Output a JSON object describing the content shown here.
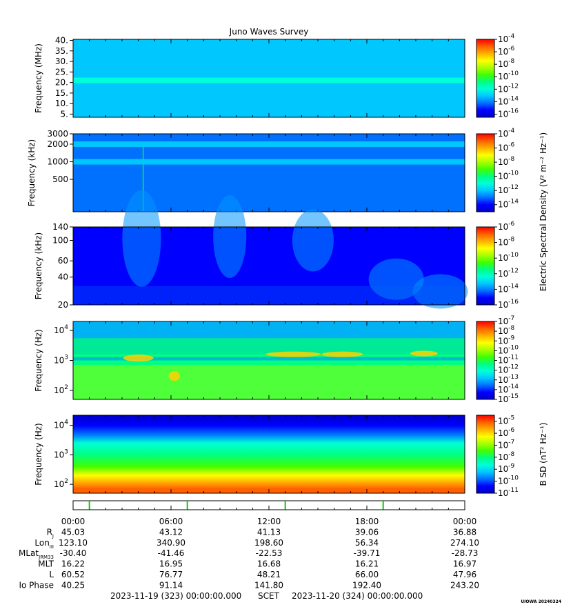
{
  "title": "Juno Waves Survey",
  "credit": "UIOWA 20240324",
  "scet": {
    "start": "2023-11-19 (323) 00:00:00.000",
    "label": "SCET",
    "end": "2023-11-20 (324) 00:00:00.000"
  },
  "shared_colorbar_label": "Electric Spectral Density (V² m⁻² Hz⁻¹)",
  "colors": {
    "spectrum": [
      "#0000c8",
      "#0000ff",
      "#0070ff",
      "#00c8ff",
      "#00ffd8",
      "#00ff80",
      "#40ff00",
      "#a8ff00",
      "#ffff00",
      "#ffb000",
      "#ff6000",
      "#ff0000"
    ]
  },
  "chart_data": [
    {
      "type": "heatmap",
      "name": "panel-1",
      "ylabel": "Frequency (MHz)",
      "yscale": "linear",
      "ylim": [
        3.5,
        40.5
      ],
      "yticks": [
        {
          "v": 40,
          "t": "40."
        },
        {
          "v": 35,
          "t": "35."
        },
        {
          "v": 30,
          "t": "30."
        },
        {
          "v": 25,
          "t": "25."
        },
        {
          "v": 20,
          "t": "20."
        },
        {
          "v": 15,
          "t": "15."
        },
        {
          "v": 10,
          "t": "10."
        },
        {
          "v": 5,
          "t": "5."
        }
      ],
      "colorbar": {
        "range": [
          -16.5,
          -4
        ],
        "ticks": [
          -4,
          -6,
          -8,
          -10,
          -12,
          -14,
          -16
        ]
      },
      "background_level": -12.8,
      "bands": [
        {
          "freq": 21,
          "level": -11.5
        }
      ]
    },
    {
      "type": "heatmap",
      "name": "panel-2",
      "ylabel": "Frequency (kHz)",
      "yscale": "log",
      "ylim": [
        140,
        3000
      ],
      "yticks": [
        {
          "v": 3000,
          "t": "3000"
        },
        {
          "v": 2000,
          "t": "2000"
        },
        {
          "v": 1000,
          "t": "1000"
        },
        {
          "v": 500,
          "t": "500"
        }
      ],
      "colorbar": {
        "range": [
          -15,
          -4
        ],
        "ticks": [
          -4,
          -6,
          -8,
          -10,
          -12,
          -14
        ]
      },
      "background_level": -12.8,
      "bands": [
        {
          "freq": 2000,
          "level": -11.8
        },
        {
          "freq": 1000,
          "level": -12.2
        }
      ]
    },
    {
      "type": "heatmap",
      "name": "panel-3",
      "ylabel": "Frequency (kHz)",
      "yscale": "log",
      "ylim": [
        20,
        140
      ],
      "yticks": [
        {
          "v": 140,
          "t": "140"
        },
        {
          "v": 100,
          "t": "100"
        },
        {
          "v": 60,
          "t": "60"
        },
        {
          "v": 40,
          "t": "40"
        },
        {
          "v": 20,
          "t": "20"
        }
      ],
      "colorbar": {
        "range": [
          -16,
          -6
        ],
        "ticks": [
          -6,
          -8,
          -10,
          -12,
          -14,
          -16
        ]
      },
      "background_level": -14.8
    },
    {
      "type": "heatmap",
      "name": "panel-4",
      "ylabel": "Frequency (Hz)",
      "yscale": "log",
      "ylim": [
        50,
        20000
      ],
      "yticks": [
        {
          "v": 10000,
          "t": "10",
          "sup": "4"
        },
        {
          "v": 1000,
          "t": "10",
          "sup": "3"
        },
        {
          "v": 100,
          "t": "10",
          "sup": "2"
        }
      ],
      "colorbar": {
        "range": [
          -15,
          -7
        ],
        "ticks": [
          -7,
          -8,
          -9,
          -10,
          -11,
          -12,
          -13,
          -14,
          -15
        ]
      },
      "background_level": -11.2
    },
    {
      "type": "heatmap",
      "name": "panel-5",
      "ylabel": "Frequency (Hz)",
      "yscale": "log",
      "ylim": [
        50,
        22000
      ],
      "yticks": [
        {
          "v": 10000,
          "t": "10",
          "sup": "4"
        },
        {
          "v": 1000,
          "t": "10",
          "sup": "3"
        },
        {
          "v": 100,
          "t": "10",
          "sup": "2"
        }
      ],
      "colorbar": {
        "range": [
          -11,
          -4.5
        ],
        "ticks": [
          -5,
          -6,
          -7,
          -8,
          -9,
          -10,
          -11
        ],
        "label": "B SD (nT² Hz⁻¹)"
      },
      "profile": [
        {
          "f": 22000,
          "level": -11.3
        },
        {
          "f": 10000,
          "level": -10.6
        },
        {
          "f": 5000,
          "level": -9.6
        },
        {
          "f": 2500,
          "level": -8.9
        },
        {
          "f": 1000,
          "level": -8.1
        },
        {
          "f": 400,
          "level": -7.3
        },
        {
          "f": 200,
          "level": -6.4
        },
        {
          "f": 120,
          "level": -5.6
        },
        {
          "f": 70,
          "level": -5.2
        },
        {
          "f": 50,
          "level": -5.1
        }
      ]
    }
  ],
  "time_axis": {
    "labels": [
      "00:00",
      "06:00",
      "12:00",
      "18:00",
      "00:00"
    ],
    "range_hours": [
      0,
      24
    ],
    "markers_hours": [
      1,
      7,
      13,
      19
    ]
  },
  "ephemeris": [
    {
      "label": "R",
      "sub": "J",
      "values": [
        "45.03",
        "43.12",
        "41.13",
        "39.06",
        "36.88"
      ]
    },
    {
      "label": "Lon",
      "sub": "III",
      "values": [
        "123.10",
        "340.90",
        "198.60",
        "56.34",
        "274.10"
      ]
    },
    {
      "label": "MLat",
      "sub": "JRM33",
      "values": [
        "-30.40",
        "-41.46",
        "-22.53",
        "-39.71",
        "-28.73"
      ]
    },
    {
      "label": "MLT",
      "sub": "",
      "values": [
        "16.22",
        "16.95",
        "16.68",
        "16.21",
        "16.97"
      ]
    },
    {
      "label": "L",
      "sub": "",
      "values": [
        "60.52",
        "76.77",
        "48.21",
        "66.00",
        "47.96"
      ]
    },
    {
      "label": "Io Phase",
      "sub": "",
      "values": [
        "40.25",
        "91.14",
        "141.80",
        "192.40",
        "243.20"
      ]
    }
  ]
}
